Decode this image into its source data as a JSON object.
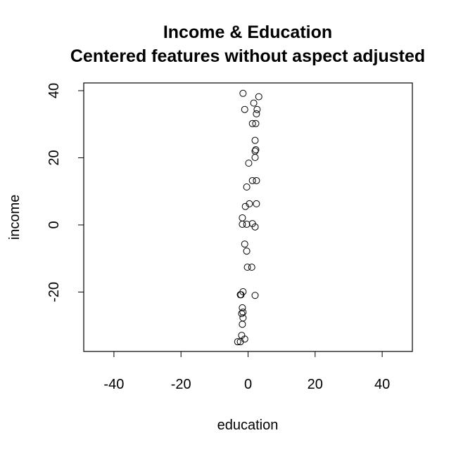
{
  "chart_data": {
    "type": "scatter",
    "title": "Income & Education",
    "subtitle": "Centered features without aspect adjusted",
    "x_label": "education",
    "y_label": "income",
    "color": "#000000",
    "xlim": [
      -49,
      49
    ],
    "ylim": [
      -37.7,
      42.3
    ],
    "xticks": [
      -40,
      -20,
      0,
      20,
      40
    ],
    "yticks": [
      -20,
      0,
      20,
      40
    ],
    "x": [
      -1.5,
      3.2,
      1.7,
      2.7,
      -1,
      2.5,
      1.3,
      2.3,
      2.1,
      2.3,
      2.1,
      2.1,
      0.2,
      1.3,
      2.5,
      -0.4,
      0.4,
      2.5,
      -0.8,
      -1.7,
      -1.7,
      -0.4,
      1.3,
      2.1,
      -1,
      -0.4,
      -0.2,
      1.1,
      -1.5,
      -2.1,
      -2.3,
      2.1,
      -1.7,
      -1.5,
      -1.9,
      -1.5,
      -1.7,
      -1.9,
      -1,
      -2.3,
      -3.1
    ],
    "y": [
      39.2,
      38.2,
      36.3,
      34.4,
      34.4,
      33.1,
      30.2,
      30.2,
      25.2,
      22.4,
      22,
      20.1,
      18.4,
      13.2,
      13.2,
      11.3,
      6.3,
      6.3,
      5.5,
      2.1,
      0.2,
      0.2,
      0.4,
      -0.6,
      -5.7,
      -7.8,
      -12.6,
      -12.6,
      -19.9,
      -20.8,
      -20.8,
      -21,
      -24.7,
      -26,
      -26.4,
      -27.7,
      -29.6,
      -32.9,
      -34,
      -34.8,
      -34.8
    ]
  }
}
